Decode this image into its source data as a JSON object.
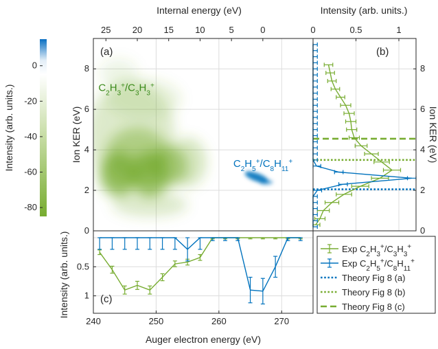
{
  "colors": {
    "green": "#77ac30",
    "blue": "#0072bd",
    "dark_green": "#3a8a1a",
    "axis": "#262626",
    "grid": "#dcdcdc"
  },
  "chart_data": [
    {
      "panel": "a",
      "type": "heatmap",
      "panel_label": "(a)",
      "xlabel": "Auger electron energy (eV)",
      "ylabel": "Ion KER (eV)",
      "top_xlabel": "Internal energy (eV)",
      "xlim": [
        240,
        275
      ],
      "ylim": [
        0,
        9.5
      ],
      "xticks": [
        240,
        250,
        260,
        270
      ],
      "yticks": [
        0,
        2,
        4,
        6,
        8
      ],
      "top_xticks": [
        {
          "at": 242,
          "label": "25"
        },
        {
          "at": 247,
          "label": "20"
        },
        {
          "at": 252,
          "label": "15"
        },
        {
          "at": 257,
          "label": "10"
        },
        {
          "at": 262,
          "label": "5"
        },
        {
          "at": 267,
          "label": "0"
        }
      ],
      "colorbar": {
        "label": "Intensity (arb. units.)",
        "ticks": [
          0,
          -20,
          -40,
          -60,
          -80
        ],
        "range": [
          -85,
          15
        ]
      },
      "annotations": [
        {
          "parts": [
            [
              "C",
              ""
            ],
            [
              "2",
              "sub"
            ],
            [
              "H",
              ""
            ],
            [
              "3",
              "sub"
            ],
            [
              "+",
              "sup"
            ],
            [
              "/C",
              ""
            ],
            [
              "3",
              "sub"
            ],
            [
              "H",
              ""
            ],
            [
              "3",
              "sub"
            ],
            [
              "+",
              "sup"
            ]
          ],
          "x": 240.8,
          "y": 6.9,
          "color": "green"
        },
        {
          "parts": [
            [
              "C",
              ""
            ],
            [
              "2",
              "sub"
            ],
            [
              "H",
              ""
            ],
            [
              "5",
              "sub"
            ],
            [
              "+",
              "sup"
            ],
            [
              "/C",
              ""
            ],
            [
              "8",
              "sub"
            ],
            [
              "H",
              ""
            ],
            [
              "11",
              "sub"
            ],
            [
              "+",
              "sup"
            ]
          ],
          "x": 262.3,
          "y": 3.15,
          "color": "blue"
        }
      ]
    },
    {
      "panel": "b",
      "type": "line",
      "panel_label": "(b)",
      "top_xlabel": "Intensity (arb. units.)",
      "ylabel": "Ion KER (eV)",
      "xlim": [
        0,
        1.2
      ],
      "ylim": [
        0,
        9.5
      ],
      "top_xticks": [
        0,
        0.5,
        1
      ],
      "yticks": [
        0,
        2,
        4,
        6,
        8
      ],
      "series": [
        {
          "name": "Exp C2H3+/C3H3+",
          "color": "green",
          "y": [
            0.3,
            0.6,
            1.0,
            1.4,
            1.8,
            2.2,
            2.6,
            3.0,
            3.4,
            3.8,
            4.2,
            4.6,
            5.0,
            5.4,
            5.8,
            6.2,
            6.6,
            7.0,
            7.4,
            7.8,
            8.2
          ],
          "x": [
            0.03,
            0.08,
            0.12,
            0.22,
            0.36,
            0.55,
            0.78,
            0.92,
            0.8,
            0.68,
            0.56,
            0.48,
            0.45,
            0.44,
            0.42,
            0.38,
            0.32,
            0.26,
            0.22,
            0.2,
            0.18
          ],
          "err": [
            0.05,
            0.06,
            0.07,
            0.08,
            0.09,
            0.1,
            0.1,
            0.1,
            0.09,
            0.08,
            0.07,
            0.06,
            0.06,
            0.06,
            0.06,
            0.06,
            0.05,
            0.05,
            0.05,
            0.05,
            0.05
          ]
        },
        {
          "name": "Exp C2H5+/C8H11+",
          "color": "blue",
          "y": [
            0.2,
            0.5,
            0.8,
            1.1,
            1.4,
            1.7,
            2.0,
            2.3,
            2.6,
            2.9,
            3.2,
            3.5,
            3.8,
            4.1,
            4.4,
            4.7,
            5.0,
            5.3,
            5.6,
            5.9,
            6.2,
            6.5,
            6.8,
            7.1,
            7.4,
            7.7,
            8.0,
            8.3,
            8.6,
            8.9,
            9.2
          ],
          "x": [
            0,
            0,
            0,
            0,
            0,
            0,
            0.05,
            0.35,
            1.15,
            0.3,
            0.04,
            0,
            0,
            0,
            0,
            0,
            0,
            0,
            0,
            0,
            0,
            0,
            0,
            0,
            0,
            0,
            0,
            0,
            0,
            0,
            0
          ],
          "err": [
            0.05,
            0.05,
            0.05,
            0.05,
            0.05,
            0.05,
            0.05,
            0.05,
            0.05,
            0.05,
            0.05,
            0.05,
            0.05,
            0.05,
            0.05,
            0.05,
            0.05,
            0.05,
            0.05,
            0.05,
            0.05,
            0.05,
            0.05,
            0.05,
            0.05,
            0.05,
            0.05,
            0.05,
            0.05,
            0.05,
            0.05
          ]
        }
      ],
      "hlines": [
        {
          "name": "Theory Fig 8 (a)",
          "y": 2.05,
          "style": "dotted",
          "color": "blue"
        },
        {
          "name": "Theory Fig 8 (b)",
          "y": 3.5,
          "style": "dotted",
          "color": "green"
        },
        {
          "name": "Theory Fig 8 (c)",
          "y": 4.55,
          "style": "dashed",
          "color": "green"
        }
      ]
    },
    {
      "panel": "c",
      "type": "line",
      "panel_label": "(c)",
      "xlabel": "Auger electron energy (eV)",
      "ylabel": "Intensity (arb. units.)",
      "xlim": [
        240,
        275
      ],
      "ylim": [
        0,
        1.3
      ],
      "y_reversed": true,
      "xticks": [
        240,
        250,
        260,
        270
      ],
      "yticks": [
        0.5,
        1
      ],
      "series": [
        {
          "name": "Exp C2H3+/C3H3+",
          "color": "green",
          "x": [
            241,
            243,
            245,
            247,
            249,
            251,
            253,
            255,
            257,
            259,
            261,
            263,
            265,
            267,
            269,
            271,
            273
          ],
          "y": [
            0.25,
            0.55,
            0.9,
            0.82,
            0.9,
            0.68,
            0.45,
            0.42,
            0.34,
            0.0,
            0.0,
            0.0,
            0.0,
            0.0,
            0.0,
            0.0,
            0.0
          ],
          "err": [
            0.04,
            0.06,
            0.07,
            0.07,
            0.07,
            0.06,
            0.05,
            0.05,
            0.05,
            0.02,
            0.02,
            0.02,
            0.02,
            0.02,
            0.02,
            0.02,
            0.02
          ]
        },
        {
          "name": "Exp C2H5+/C8H11+",
          "color": "blue",
          "x": [
            241,
            243,
            245,
            247,
            249,
            251,
            253,
            255,
            257,
            259,
            261,
            263,
            265,
            267,
            269,
            271,
            273
          ],
          "y": [
            0.0,
            0.0,
            0.0,
            0.0,
            0.0,
            0.0,
            0.0,
            0.2,
            0.0,
            0.0,
            0.0,
            0.0,
            0.9,
            0.92,
            0.5,
            0.0,
            0.0
          ],
          "err": [
            0.2,
            0.2,
            0.2,
            0.2,
            0.2,
            0.2,
            0.2,
            0.2,
            0.2,
            0.05,
            0.05,
            0.05,
            0.22,
            0.22,
            0.18,
            0.05,
            0.05
          ]
        }
      ]
    }
  ],
  "legend": [
    {
      "kind": "errline",
      "color": "green",
      "parts": [
        [
          "Exp C",
          ""
        ],
        [
          "2",
          "sub"
        ],
        [
          "H",
          ""
        ],
        [
          "3",
          "sub"
        ],
        [
          "+",
          "sup"
        ],
        [
          "/C",
          ""
        ],
        [
          "3",
          "sub"
        ],
        [
          "H",
          ""
        ],
        [
          "3",
          "sub"
        ],
        [
          "+",
          "sup"
        ]
      ]
    },
    {
      "kind": "errline",
      "color": "blue",
      "parts": [
        [
          "Exp C",
          ""
        ],
        [
          "2",
          "sub"
        ],
        [
          "H",
          ""
        ],
        [
          "5",
          "sub"
        ],
        [
          "+",
          "sup"
        ],
        [
          "/C",
          ""
        ],
        [
          "8",
          "sub"
        ],
        [
          "H",
          ""
        ],
        [
          "11",
          "sub"
        ],
        [
          "+",
          "sup"
        ]
      ]
    },
    {
      "kind": "dotted",
      "color": "blue",
      "parts": [
        [
          "Theory Fig 8 (a)",
          ""
        ]
      ]
    },
    {
      "kind": "dotted",
      "color": "green",
      "parts": [
        [
          "Theory Fig 8 (b)",
          ""
        ]
      ]
    },
    {
      "kind": "dashed",
      "color": "green",
      "parts": [
        [
          "Theory Fig 8 (c)",
          ""
        ]
      ]
    }
  ]
}
